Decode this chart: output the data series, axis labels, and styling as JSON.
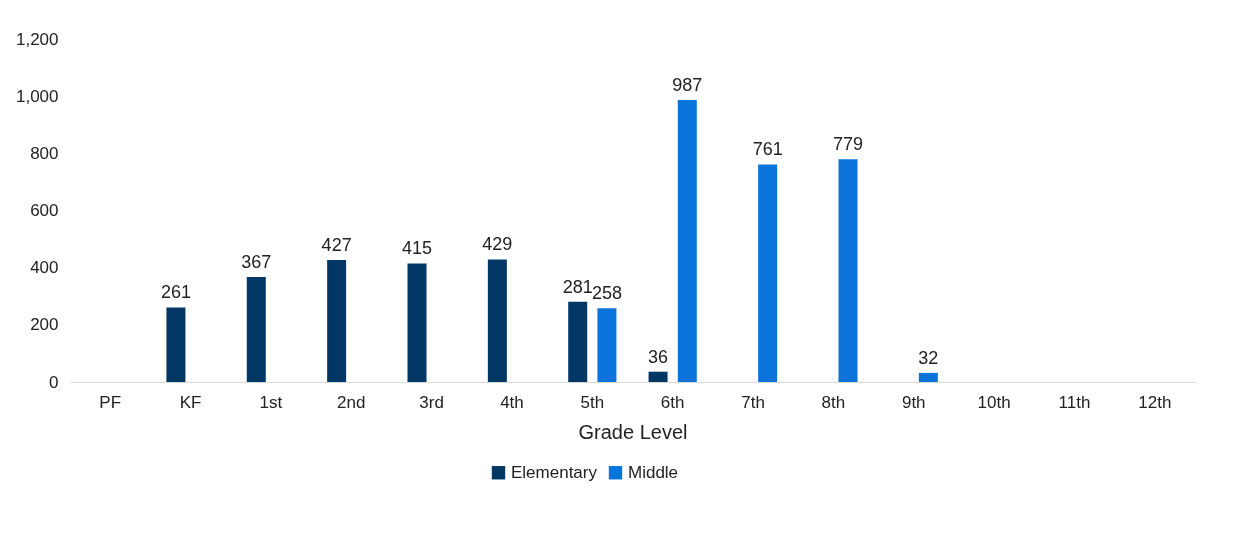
{
  "chart_data": {
    "type": "bar",
    "xlabel": "Grade Level",
    "categories": [
      "PF",
      "KF",
      "1st",
      "2nd",
      "3rd",
      "4th",
      "5th",
      "6th",
      "7th",
      "8th",
      "9th",
      "10th",
      "11th",
      "12th"
    ],
    "series": [
      {
        "name": "Elementary",
        "color": "#003764",
        "values": [
          null,
          261,
          367,
          427,
          415,
          429,
          281,
          36,
          null,
          null,
          null,
          null,
          null,
          null
        ]
      },
      {
        "name": "Middle",
        "color": "#0a74da",
        "values": [
          null,
          null,
          null,
          null,
          null,
          null,
          258,
          987,
          761,
          779,
          32,
          null,
          null,
          null
        ]
      }
    ],
    "ylim": [
      0,
      1200
    ],
    "yticks": [
      0,
      200,
      400,
      600,
      800,
      {
        "value": 1000,
        "label": "1,000"
      },
      {
        "value": 1200,
        "label": "1,200"
      }
    ],
    "grid": false,
    "legend": "bottom",
    "data_labels": true
  }
}
